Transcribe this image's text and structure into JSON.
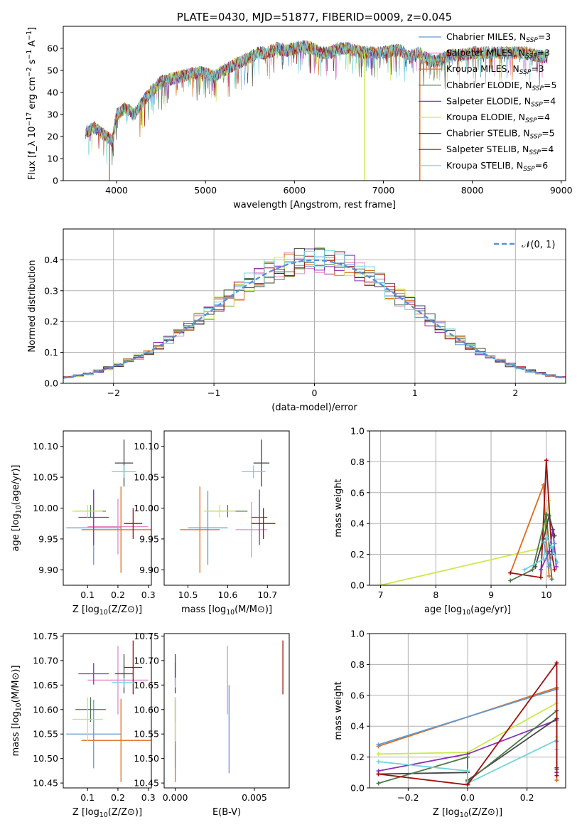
{
  "chart_data": [
    {
      "id": "spectrum",
      "type": "line",
      "title": "PLATE=0430, MJD=51877, FIBERID=0009, z=0.045",
      "xlabel": "wavelength [Angstrom, rest frame]",
      "ylabel": "Flux [f_λ 10^-17 erg cm^-2 s^-1 A^-1]",
      "xlim": [
        3400,
        9050
      ],
      "ylim": [
        0,
        70
      ],
      "xticks": [
        4000,
        5000,
        6000,
        7000,
        8000,
        9000
      ],
      "yticks": [
        0,
        10,
        20,
        30,
        40,
        50,
        60
      ],
      "legend_position": "top-right",
      "series": [
        {
          "name": "Chabrier MILES, N_SSP=3",
          "color": "#5e9bd6"
        },
        {
          "name": "Salpeter MILES, N_SSP=3",
          "color": "#e58ac8"
        },
        {
          "name": "Kroupa MILES, N_SSP=3",
          "color": "#e06c1a"
        },
        {
          "name": "Chabrier ELODIE, N_SSP=5",
          "color": "#4a7a4a"
        },
        {
          "name": "Salpeter ELODIE, N_SSP=4",
          "color": "#8b2fb8"
        },
        {
          "name": "Kroupa ELODIE, N_SSP=4",
          "color": "#c9ea4a"
        },
        {
          "name": "Chabrier STELIB, N_SSP=5",
          "color": "#444444"
        },
        {
          "name": "Salpeter STELIB, N_SSP=4",
          "color": "#a01010"
        },
        {
          "name": "Kroupa STELIB, N_SSP=6",
          "color": "#6fd4dc"
        }
      ],
      "continuum": {
        "x": [
          3650,
          3750,
          3850,
          3950,
          4000,
          4100,
          4200,
          4300,
          4400,
          4500,
          4600,
          4700,
          4800,
          4900,
          5000,
          5100,
          5200,
          5300,
          5400,
          5500,
          5600,
          5700,
          5800,
          5900,
          6000,
          6100,
          6200,
          6300,
          6400,
          6500,
          6600,
          6700,
          6800,
          6900,
          7000,
          7100,
          7200,
          7300,
          7400,
          7500,
          7600,
          7700,
          7800,
          7900,
          8000,
          8200,
          8400,
          8600,
          8800
        ],
        "y": [
          22,
          24,
          21,
          18,
          30,
          33,
          30,
          36,
          41,
          45,
          46,
          47,
          48,
          49,
          49,
          47,
          50,
          52,
          54,
          56,
          58,
          58,
          60,
          59,
          60,
          61,
          60,
          58,
          58,
          60,
          60,
          59,
          58,
          58,
          58,
          59,
          59,
          56,
          58,
          55,
          54,
          56,
          57,
          57,
          58,
          58,
          58,
          58,
          56
        ]
      },
      "drop_lines": [
        {
          "x": 3920,
          "color": "#e06c1a"
        },
        {
          "x": 6790,
          "color": "#c9ea4a"
        },
        {
          "x": 7410,
          "color": "#e06c1a"
        }
      ]
    },
    {
      "id": "residuals",
      "type": "line",
      "xlabel": "(data-model)/error",
      "ylabel": "Normed distribution",
      "xlim": [
        -2.5,
        2.5
      ],
      "ylim": [
        0,
        0.5
      ],
      "xticks": [
        -2,
        -1,
        0,
        1,
        2
      ],
      "yticks": [
        0.0,
        0.1,
        0.2,
        0.3,
        0.4
      ],
      "grid": true,
      "legend_position": "top-right",
      "legend_label": "𝒩(0, 1)",
      "normal_curve_color": "#5b8fd6"
    },
    {
      "id": "age_vs_Z",
      "type": "scatter",
      "xlabel": "Z [log10(Z/Z⊙)]",
      "ylabel": "age  [log10(age/yr)]",
      "xlim": [
        0.02,
        0.31
      ],
      "ylim": [
        9.875,
        10.125
      ],
      "xticks": [
        0.1,
        0.2,
        0.3
      ],
      "yticks": [
        9.9,
        9.95,
        10.0,
        10.05,
        10.1
      ],
      "points": [
        {
          "color": "#5e9bd6",
          "x": 0.12,
          "y": 9.968,
          "xerr": 0.09,
          "yerr": 0.06
        },
        {
          "color": "#e58ac8",
          "x": 0.2,
          "y": 9.97,
          "xerr": 0.1,
          "yerr": 0.045
        },
        {
          "color": "#e06c1a",
          "x": 0.21,
          "y": 9.965,
          "xerr": 0.13,
          "yerr": 0.07
        },
        {
          "color": "#4a7a4a",
          "x": 0.11,
          "y": 9.995,
          "xerr": 0.05,
          "yerr": 0.01
        },
        {
          "color": "#8b2fb8",
          "x": 0.12,
          "y": 9.985,
          "xerr": 0.05,
          "yerr": 0.045
        },
        {
          "color": "#c9ea4a",
          "x": 0.1,
          "y": 9.995,
          "xerr": 0.05,
          "yerr": 0.01
        },
        {
          "color": "#444444",
          "x": 0.22,
          "y": 10.073,
          "xerr": 0.03,
          "yerr": 0.038
        },
        {
          "color": "#a01010",
          "x": 0.25,
          "y": 9.975,
          "xerr": 0.03,
          "yerr": 0.025
        },
        {
          "color": "#6fd4dc",
          "x": 0.22,
          "y": 10.059,
          "xerr": 0.04,
          "yerr": 0.01
        }
      ]
    },
    {
      "id": "age_vs_mass",
      "type": "scatter",
      "xlabel": "mass [log10(M/M⊙)]",
      "ylabel": "",
      "xlim": [
        10.44,
        10.755
      ],
      "ylim": [
        9.875,
        10.125
      ],
      "xticks": [
        10.5,
        10.6,
        10.7
      ],
      "yticks": [
        9.9,
        9.95,
        10.0,
        10.05,
        10.1
      ],
      "points": [
        {
          "color": "#5e9bd6",
          "x": 10.55,
          "y": 9.968,
          "xerr": 0.05,
          "yerr": 0.06
        },
        {
          "color": "#e58ac8",
          "x": 10.66,
          "y": 9.965,
          "xerr": 0.04,
          "yerr": 0.045
        },
        {
          "color": "#e06c1a",
          "x": 10.53,
          "y": 9.965,
          "xerr": 0.05,
          "yerr": 0.07
        },
        {
          "color": "#4a7a4a",
          "x": 10.6,
          "y": 9.995,
          "xerr": 0.05,
          "yerr": 0.01
        },
        {
          "color": "#8b2fb8",
          "x": 10.68,
          "y": 9.985,
          "xerr": 0.02,
          "yerr": 0.045
        },
        {
          "color": "#c9ea4a",
          "x": 10.58,
          "y": 9.995,
          "xerr": 0.04,
          "yerr": 0.01
        },
        {
          "color": "#444444",
          "x": 10.685,
          "y": 10.073,
          "xerr": 0.02,
          "yerr": 0.038
        },
        {
          "color": "#a01010",
          "x": 10.69,
          "y": 9.975,
          "xerr": 0.03,
          "yerr": 0.025
        },
        {
          "color": "#6fd4dc",
          "x": 10.665,
          "y": 10.059,
          "xerr": 0.03,
          "yerr": 0.01
        }
      ]
    },
    {
      "id": "weight_vs_age",
      "type": "line",
      "xlabel": "age  [log10(age/yr)]",
      "ylabel": "mass weight",
      "xlim": [
        6.8,
        10.35
      ],
      "ylim": [
        0,
        1.0
      ],
      "xticks": [
        7,
        8,
        9,
        10
      ],
      "yticks": [
        0.0,
        0.2,
        0.4,
        0.6,
        0.8,
        1.0
      ],
      "grid": true,
      "series": [
        {
          "color": "#c9ea4a",
          "x": [
            7.0,
            9.9,
            10.05,
            10.1
          ],
          "y": [
            0.0,
            0.24,
            0.55,
            0.2
          ]
        },
        {
          "color": "#e06c1a",
          "x": [
            9.35,
            9.95,
            10.0,
            10.05
          ],
          "y": [
            0.08,
            0.65,
            0.3,
            0.06
          ]
        },
        {
          "color": "#a01010",
          "x": [
            9.35,
            9.9,
            10.0,
            10.1,
            10.15
          ],
          "y": [
            0.08,
            0.05,
            0.81,
            0.2,
            0.1
          ]
        },
        {
          "color": "#4a7a4a",
          "x": [
            9.35,
            9.75,
            10.0,
            10.1
          ],
          "y": [
            0.03,
            0.1,
            0.46,
            0.04
          ]
        },
        {
          "color": "#8b2fb8",
          "x": [
            9.9,
            10.05,
            10.12,
            10.18
          ],
          "y": [
            0.1,
            0.22,
            0.36,
            0.12
          ]
        },
        {
          "color": "#444444",
          "x": [
            9.8,
            9.95,
            10.05,
            10.15
          ],
          "y": [
            0.12,
            0.3,
            0.45,
            0.32
          ]
        },
        {
          "color": "#6fd4dc",
          "x": [
            9.6,
            9.95,
            10.0,
            10.1,
            10.2
          ],
          "y": [
            0.1,
            0.17,
            0.31,
            0.25,
            0.15
          ]
        },
        {
          "color": "#5e9bd6",
          "x": [
            9.95,
            10.05,
            10.15
          ],
          "y": [
            0.28,
            0.12,
            0.27
          ]
        }
      ]
    },
    {
      "id": "mass_vs_Z",
      "type": "scatter",
      "xlabel": "Z [log10(Z/Z⊙)]",
      "ylabel": "mass [log10(M/M⊙)]",
      "xlim": [
        0.02,
        0.31
      ],
      "ylim": [
        10.44,
        10.755
      ],
      "xticks": [
        0.1,
        0.2,
        0.3
      ],
      "yticks": [
        10.45,
        10.5,
        10.55,
        10.6,
        10.65,
        10.7,
        10.75
      ],
      "points": [
        {
          "color": "#5e9bd6",
          "x": 0.12,
          "y": 10.55,
          "xerr": 0.09,
          "yerr": 0.07
        },
        {
          "color": "#e58ac8",
          "x": 0.2,
          "y": 10.66,
          "xerr": 0.1,
          "yerr": 0.07
        },
        {
          "color": "#e06c1a",
          "x": 0.21,
          "y": 10.537,
          "xerr": 0.13,
          "yerr": 0.085
        },
        {
          "color": "#4a7a4a",
          "x": 0.11,
          "y": 10.6,
          "xerr": 0.05,
          "yerr": 0.025
        },
        {
          "color": "#8b2fb8",
          "x": 0.12,
          "y": 10.673,
          "xerr": 0.05,
          "yerr": 0.022
        },
        {
          "color": "#c9ea4a",
          "x": 0.1,
          "y": 10.58,
          "xerr": 0.05,
          "yerr": 0.045
        },
        {
          "color": "#444444",
          "x": 0.22,
          "y": 10.673,
          "xerr": 0.03,
          "yerr": 0.04
        },
        {
          "color": "#a01010",
          "x": 0.25,
          "y": 10.686,
          "xerr": 0.03,
          "yerr": 0.055
        },
        {
          "color": "#6fd4dc",
          "x": 0.22,
          "y": 10.655,
          "xerr": 0.04,
          "yerr": 0.01
        }
      ]
    },
    {
      "id": "mass_vs_ebv",
      "type": "scatter",
      "xlabel": "E(B-V)",
      "ylabel": "",
      "xlim": [
        -0.0007,
        0.0072
      ],
      "ylim": [
        10.44,
        10.755
      ],
      "xticks": [
        0.0,
        0.005
      ],
      "xticklabels": [
        "0.000",
        "0.005"
      ],
      "yticks": [
        10.45,
        10.5,
        10.55,
        10.6,
        10.65,
        10.7,
        10.75
      ],
      "points": [
        {
          "color": "#5e9bd6",
          "x": 0.0,
          "y": 10.55,
          "yerr": 0.07
        },
        {
          "color": "#e58ac8",
          "x": 0.0033,
          "y": 10.66,
          "yerr": 0.07
        },
        {
          "color": "#e06c1a",
          "x": 0.0,
          "y": 10.537,
          "yerr": 0.085
        },
        {
          "color": "#4a7a4a",
          "x": 0.0,
          "y": 10.6,
          "yerr": 0.025
        },
        {
          "color": "#8b2fb8",
          "x": 0.0,
          "y": 10.673,
          "yerr": 0.022
        },
        {
          "color": "#c9ea4a",
          "x": 0.0,
          "y": 10.58,
          "yerr": 0.045
        },
        {
          "color": "#444444",
          "x": 0.0,
          "y": 10.673,
          "yerr": 0.04
        },
        {
          "color": "#a01010",
          "x": 0.0068,
          "y": 10.686,
          "yerr": 0.055
        },
        {
          "color": "#6fd4dc",
          "x": 0.0,
          "y": 10.655,
          "yerr": 0.01
        },
        {
          "color": "#6e8fe6",
          "x": 0.0034,
          "y": 10.56,
          "yerr": 0.09
        }
      ]
    },
    {
      "id": "weight_vs_Z",
      "type": "line",
      "xlabel": "Z [log10(Z/Z⊙)]",
      "ylabel": "mass weight",
      "xlim": [
        -0.33,
        0.33
      ],
      "ylim": [
        0,
        1.0
      ],
      "xticks": [
        -0.2,
        0.0,
        0.2
      ],
      "yticks": [
        0.0,
        0.2,
        0.4,
        0.6,
        0.8,
        1.0
      ],
      "grid": true,
      "series": [
        {
          "color": "#e06c1a",
          "x": [
            -0.3,
            0.3,
            0.3
          ],
          "y": [
            0.27,
            0.65,
            0.05
          ]
        },
        {
          "color": "#5e9bd6",
          "x": [
            -0.3,
            0.3,
            0.3
          ],
          "y": [
            0.28,
            0.64,
            0.3
          ]
        },
        {
          "color": "#c9ea4a",
          "x": [
            -0.3,
            0.0,
            0.3,
            0.3
          ],
          "y": [
            0.22,
            0.23,
            0.55,
            0.33
          ]
        },
        {
          "color": "#8b2fb8",
          "x": [
            -0.3,
            0.0,
            0.3,
            0.3
          ],
          "y": [
            0.11,
            0.22,
            0.44,
            0.1
          ]
        },
        {
          "color": "#444444",
          "x": [
            -0.3,
            0.0,
            0.0,
            0.3,
            0.3
          ],
          "y": [
            0.09,
            0.1,
            0.05,
            0.45,
            0.13
          ]
        },
        {
          "color": "#4a7a4a",
          "x": [
            -0.3,
            0.0,
            0.0,
            0.3,
            0.3
          ],
          "y": [
            0.03,
            0.2,
            0.04,
            0.5,
            0.12
          ]
        },
        {
          "color": "#6fd4dc",
          "x": [
            -0.3,
            0.0,
            0.0,
            0.3,
            0.3
          ],
          "y": [
            0.17,
            0.11,
            0.03,
            0.31,
            0.25
          ]
        },
        {
          "color": "#a01010",
          "x": [
            -0.3,
            0.0,
            0.3,
            0.3
          ],
          "y": [
            0.09,
            0.02,
            0.81,
            0.08
          ]
        }
      ]
    }
  ]
}
